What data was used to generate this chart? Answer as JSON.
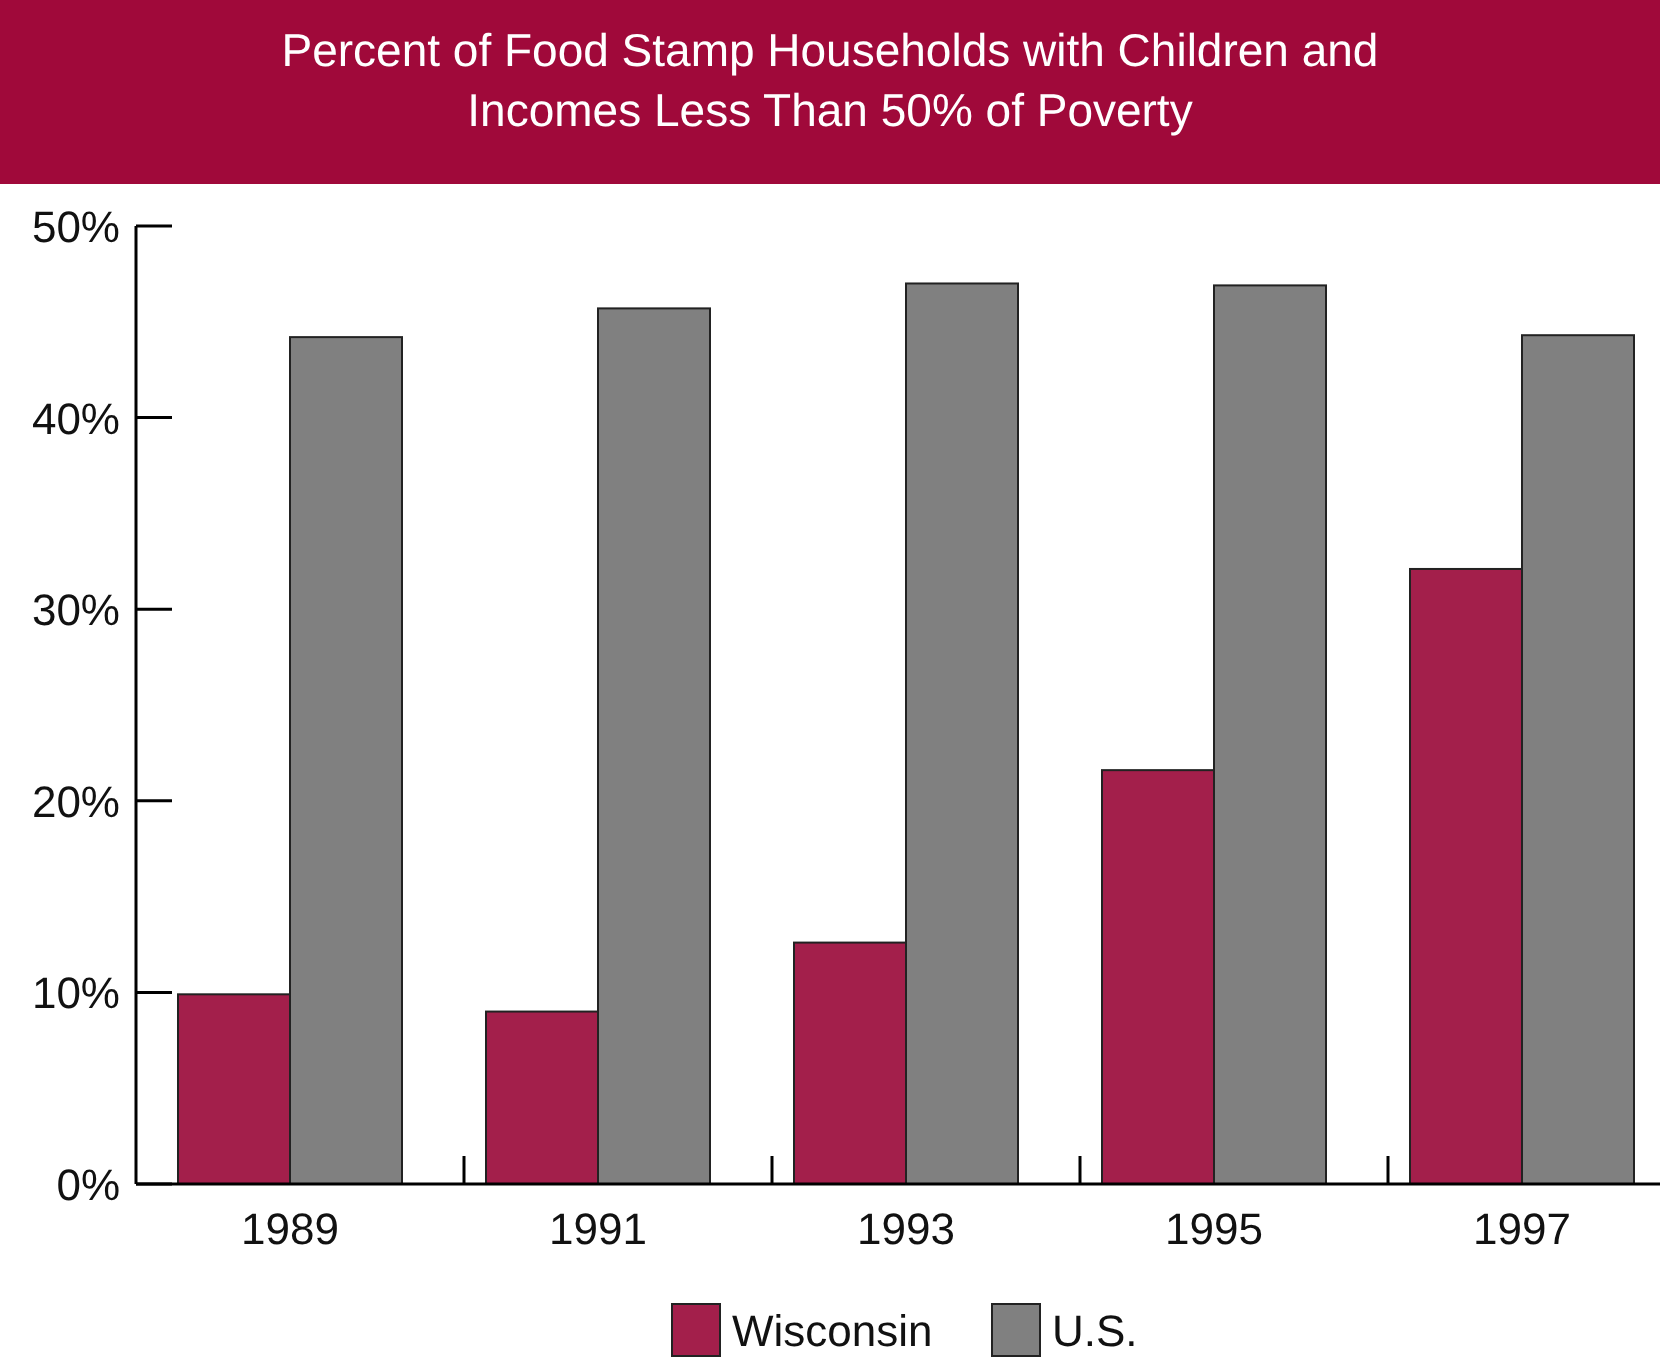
{
  "chart_data": {
    "type": "bar",
    "title": "Percent of Food Stamp Households with Children and Incomes Less Than 50% of Poverty",
    "categories": [
      "1989",
      "1991",
      "1993",
      "1995",
      "1997"
    ],
    "series": [
      {
        "name": "Wisconsin",
        "color": "#a31f4b",
        "values": [
          9.9,
          9.0,
          12.6,
          21.6,
          32.1
        ]
      },
      {
        "name": "U.S.",
        "color": "#808080",
        "values": [
          44.2,
          45.7,
          47.0,
          46.9,
          44.3
        ]
      }
    ],
    "ylim": [
      0,
      50
    ],
    "yticks": [
      {
        "value": 0,
        "label": "0%"
      },
      {
        "value": 10,
        "label": "10%"
      },
      {
        "value": 20,
        "label": "20%"
      },
      {
        "value": 30,
        "label": "30%"
      },
      {
        "value": 40,
        "label": "40%"
      },
      {
        "value": 50,
        "label": "50%"
      }
    ],
    "grid": false,
    "legend": "bottom"
  }
}
